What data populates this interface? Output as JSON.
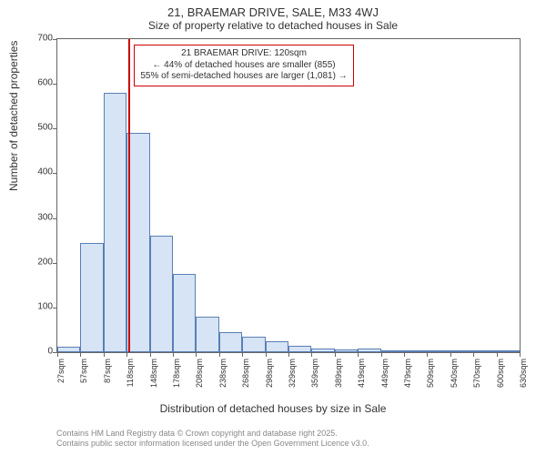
{
  "title_main": "21, BRAEMAR DRIVE, SALE, M33 4WJ",
  "title_sub": "Size of property relative to detached houses in Sale",
  "y_axis_label": "Number of detached properties",
  "x_axis_label": "Distribution of detached houses by size in Sale",
  "footer_line1": "Contains HM Land Registry data © Crown copyright and database right 2025.",
  "footer_line2": "Contains public sector information licensed under the Open Government Licence v3.0.",
  "annotation_line1": "21 BRAEMAR DRIVE: 120sqm",
  "annotation_line2": "← 44% of detached houses are smaller (855)",
  "annotation_line3": "55% of semi-detached houses are larger (1,081) →",
  "histogram": {
    "type": "histogram",
    "bar_fill": "#d6e4f5",
    "bar_border": "#5a7fb5",
    "marker_color": "#cc0000",
    "annotation_border": "#cc0000",
    "background_color": "#ffffff",
    "axis_color": "#666666",
    "text_color": "#333333",
    "footer_color": "#888888",
    "ylim": [
      0,
      700
    ],
    "ytick_step": 100,
    "marker_x_value": 120,
    "x_ticks": [
      "27sqm",
      "57sqm",
      "87sqm",
      "118sqm",
      "148sqm",
      "178sqm",
      "208sqm",
      "238sqm",
      "268sqm",
      "298sqm",
      "329sqm",
      "359sqm",
      "389sqm",
      "419sqm",
      "449sqm",
      "479sqm",
      "509sqm",
      "540sqm",
      "570sqm",
      "600sqm",
      "630sqm"
    ],
    "values": [
      12,
      245,
      580,
      490,
      260,
      175,
      80,
      45,
      35,
      25,
      15,
      8,
      6,
      8,
      5,
      3,
      2,
      2,
      2,
      2
    ]
  }
}
